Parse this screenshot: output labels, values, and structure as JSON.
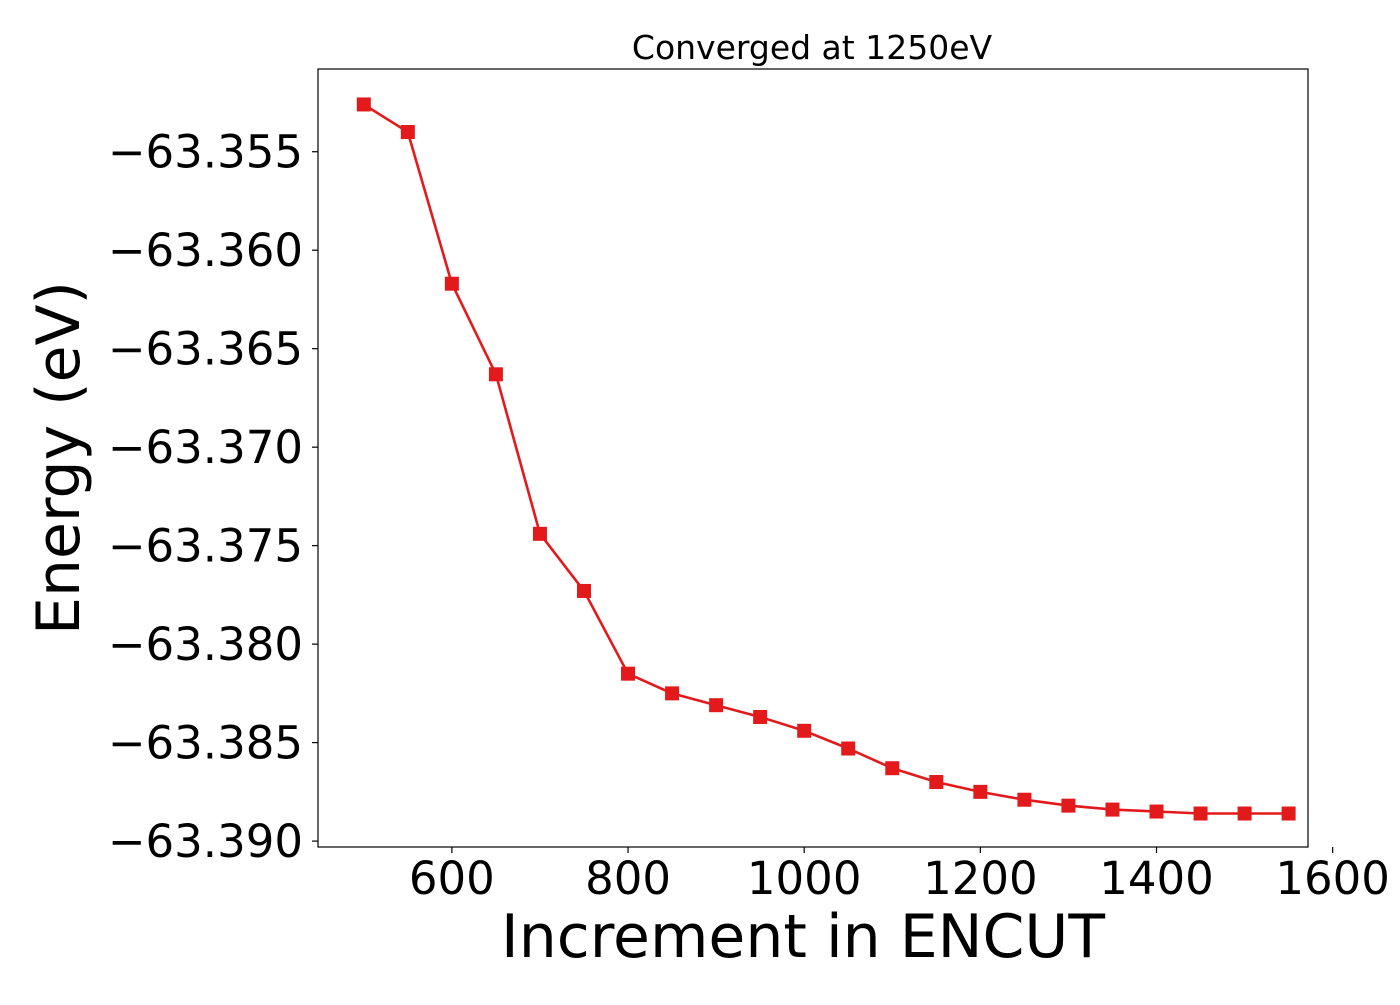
{
  "chart_data": {
    "type": "line",
    "title": "Converged at 1250eV",
    "xlabel": "Increment in ENCUT",
    "ylabel": "Energy (eV)",
    "xlim": [
      448,
      1572
    ],
    "ylim": [
      -63.3903,
      -63.3508
    ],
    "xticks": [
      600,
      800,
      1000,
      1200,
      1400,
      1600
    ],
    "xtick_labels": [
      "600",
      "800",
      "1000",
      "1200",
      "1400",
      "1600"
    ],
    "yticks": [
      -63.355,
      -63.36,
      -63.365,
      -63.37,
      -63.375,
      -63.38,
      -63.385,
      -63.39
    ],
    "ytick_labels": [
      "−63.355",
      "−63.360",
      "−63.365",
      "−63.370",
      "−63.375",
      "−63.380",
      "−63.385",
      "−63.390"
    ],
    "grid": false,
    "legend": "none",
    "series": [
      {
        "color": "#e31a1c",
        "marker": "square",
        "x": [
          500,
          550,
          600,
          650,
          700,
          750,
          800,
          850,
          900,
          950,
          1000,
          1050,
          1100,
          1150,
          1200,
          1250,
          1300,
          1350,
          1400,
          1450,
          1500,
          1550
        ],
        "y": [
          -63.3526,
          -63.354,
          -63.3617,
          -63.3663,
          -63.3744,
          -63.3773,
          -63.3815,
          -63.3825,
          -63.3831,
          -63.3837,
          -63.3844,
          -63.3853,
          -63.3863,
          -63.387,
          -63.3875,
          -63.3879,
          -63.3882,
          -63.3884,
          -63.3885,
          -63.3886,
          -63.3886,
          -63.3886
        ]
      }
    ]
  }
}
